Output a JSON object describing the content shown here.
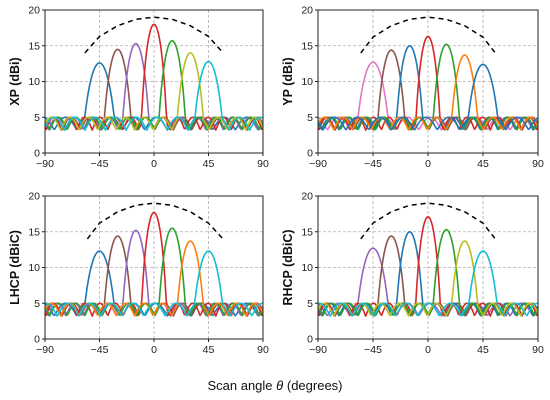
{
  "figure": {
    "xlabel_prefix": "Scan angle",
    "xlabel_symbol": "θ",
    "xlabel_suffix": "(degrees)"
  },
  "chart_data": [
    {
      "type": "line",
      "ylabel": "XP (dBi)",
      "xlim": [
        -90,
        90
      ],
      "ylim": [
        0,
        20
      ],
      "xticks": [
        -90,
        -45,
        0,
        45,
        90
      ],
      "yticks": [
        0,
        5,
        10,
        15,
        20
      ],
      "grid": true,
      "envelope": {
        "style": "dashed",
        "color": "#000000",
        "x": [
          -57,
          -45,
          -30,
          -15,
          0,
          15,
          30,
          45,
          57
        ],
        "y": [
          14.0,
          16.3,
          17.8,
          18.7,
          19.0,
          18.7,
          17.8,
          16.3,
          14.0
        ]
      },
      "series": [
        {
          "color": "#1f77b4",
          "peak_deg": -45,
          "peak": 12.6,
          "width": 22
        },
        {
          "color": "#8c564b",
          "peak_deg": -30,
          "peak": 14.5,
          "width": 18
        },
        {
          "color": "#9467bd",
          "peak_deg": -15,
          "peak": 15.3,
          "width": 17
        },
        {
          "color": "#d62728",
          "peak_deg": 0,
          "peak": 18.0,
          "width": 15
        },
        {
          "color": "#2ca02c",
          "peak_deg": 15,
          "peak": 15.7,
          "width": 17
        },
        {
          "color": "#bcbd22",
          "peak_deg": 30,
          "peak": 14.0,
          "width": 18
        },
        {
          "color": "#17becf",
          "peak_deg": 45,
          "peak": 12.8,
          "width": 20
        }
      ]
    },
    {
      "type": "line",
      "ylabel": "YP (dBi)",
      "xlim": [
        -90,
        90
      ],
      "ylim": [
        0,
        20
      ],
      "xticks": [
        -90,
        -45,
        0,
        45,
        90
      ],
      "yticks": [
        0,
        5,
        10,
        15,
        20
      ],
      "grid": true,
      "envelope": {
        "style": "dashed",
        "color": "#000000",
        "x": [
          -55,
          -45,
          -30,
          -15,
          0,
          15,
          30,
          45,
          55
        ],
        "y": [
          14.0,
          16.2,
          17.8,
          18.7,
          19.0,
          18.7,
          17.8,
          16.2,
          14.0
        ]
      },
      "series": [
        {
          "color": "#e377c2",
          "peak_deg": -45,
          "peak": 12.7,
          "width": 22
        },
        {
          "color": "#8c564b",
          "peak_deg": -30,
          "peak": 14.4,
          "width": 18
        },
        {
          "color": "#1f77b4",
          "peak_deg": -15,
          "peak": 15.0,
          "width": 17
        },
        {
          "color": "#d62728",
          "peak_deg": 0,
          "peak": 16.3,
          "width": 15
        },
        {
          "color": "#2ca02c",
          "peak_deg": 15,
          "peak": 15.2,
          "width": 17
        },
        {
          "color": "#ff7f0e",
          "peak_deg": 30,
          "peak": 13.7,
          "width": 18
        },
        {
          "color": "#1f77b4",
          "peak_deg": 45,
          "peak": 12.4,
          "width": 22
        }
      ]
    },
    {
      "type": "line",
      "ylabel": "LHCP (dBiC)",
      "xlim": [
        -90,
        90
      ],
      "ylim": [
        0,
        20
      ],
      "xticks": [
        -90,
        -45,
        0,
        45,
        90
      ],
      "yticks": [
        0,
        5,
        10,
        15,
        20
      ],
      "grid": true,
      "envelope": {
        "style": "dashed",
        "color": "#000000",
        "x": [
          -55,
          -45,
          -30,
          -15,
          0,
          15,
          30,
          45,
          58
        ],
        "y": [
          14.0,
          16.2,
          17.8,
          18.7,
          19.0,
          18.7,
          17.8,
          16.2,
          13.8
        ]
      },
      "series": [
        {
          "color": "#1f77b4",
          "peak_deg": -45,
          "peak": 12.3,
          "width": 22
        },
        {
          "color": "#8c564b",
          "peak_deg": -30,
          "peak": 14.4,
          "width": 18
        },
        {
          "color": "#9467bd",
          "peak_deg": -15,
          "peak": 15.2,
          "width": 17
        },
        {
          "color": "#d62728",
          "peak_deg": 0,
          "peak": 17.7,
          "width": 15
        },
        {
          "color": "#2ca02c",
          "peak_deg": 15,
          "peak": 15.5,
          "width": 17
        },
        {
          "color": "#ff7f0e",
          "peak_deg": 30,
          "peak": 13.7,
          "width": 18
        },
        {
          "color": "#17becf",
          "peak_deg": 45,
          "peak": 12.3,
          "width": 21
        }
      ]
    },
    {
      "type": "line",
      "ylabel": "RHCP (dBiC)",
      "xlim": [
        -90,
        90
      ],
      "ylim": [
        0,
        20
      ],
      "xticks": [
        -90,
        -45,
        0,
        45,
        90
      ],
      "yticks": [
        0,
        5,
        10,
        15,
        20
      ],
      "grid": true,
      "envelope": {
        "style": "dashed",
        "color": "#000000",
        "x": [
          -55,
          -45,
          -30,
          -15,
          0,
          15,
          30,
          45,
          55
        ],
        "y": [
          14.0,
          16.2,
          17.8,
          18.7,
          19.0,
          18.7,
          17.8,
          16.2,
          14.0
        ]
      },
      "series": [
        {
          "color": "#9467bd",
          "peak_deg": -45,
          "peak": 12.7,
          "width": 22
        },
        {
          "color": "#8c564b",
          "peak_deg": -30,
          "peak": 14.4,
          "width": 18
        },
        {
          "color": "#1f77b4",
          "peak_deg": -15,
          "peak": 15.0,
          "width": 17
        },
        {
          "color": "#d62728",
          "peak_deg": 0,
          "peak": 17.1,
          "width": 15
        },
        {
          "color": "#2ca02c",
          "peak_deg": 15,
          "peak": 15.3,
          "width": 17
        },
        {
          "color": "#bcbd22",
          "peak_deg": 30,
          "peak": 13.7,
          "width": 18
        },
        {
          "color": "#17becf",
          "peak_deg": 45,
          "peak": 12.3,
          "width": 21
        }
      ]
    }
  ]
}
